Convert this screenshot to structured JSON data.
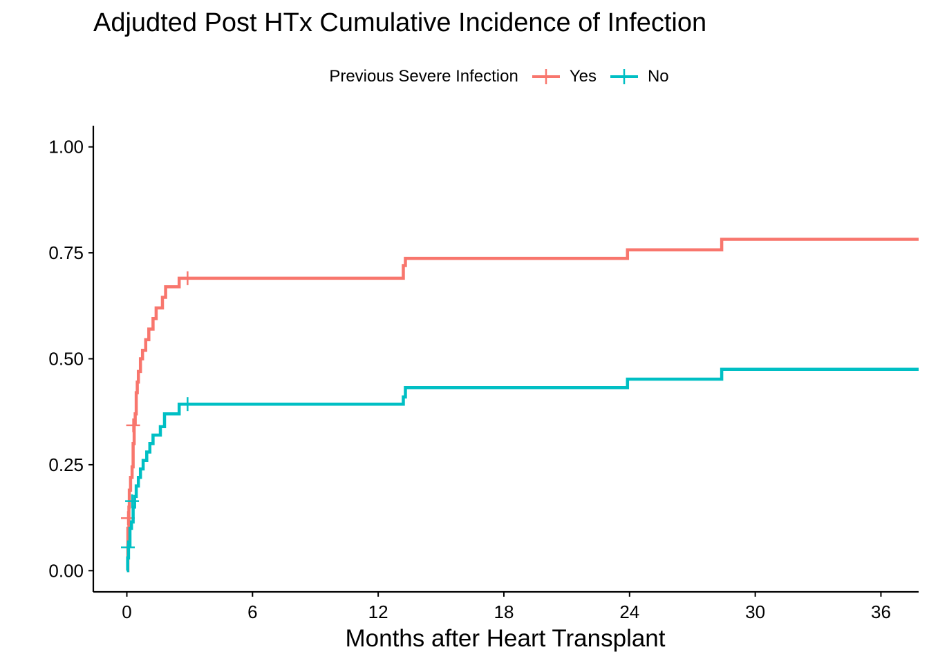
{
  "chart_data": {
    "type": "line",
    "step": true,
    "title": "Adjudted Post HTx Cumulative Incidence of Infection",
    "xlabel": "Months after Heart Transplant",
    "ylabel": "",
    "xlim": [
      -1.6,
      37.8
    ],
    "ylim": [
      -0.05,
      1.05
    ],
    "xticks": [
      0,
      6,
      12,
      18,
      24,
      30,
      36
    ],
    "yticks": [
      0.0,
      0.25,
      0.5,
      0.75,
      1.0
    ],
    "xtick_labels": [
      "0",
      "6",
      "12",
      "18",
      "24",
      "30",
      "36"
    ],
    "ytick_labels": [
      "0.00",
      "0.25",
      "0.50",
      "0.75",
      "1.00"
    ],
    "grid": false,
    "legend": {
      "title": "Previous Severe Infection",
      "position": "top"
    },
    "series": [
      {
        "name": "Yes",
        "color": "#F8766D",
        "x": [
          0,
          0.05,
          0.1,
          0.12,
          0.18,
          0.25,
          0.3,
          0.35,
          0.4,
          0.45,
          0.5,
          0.55,
          0.65,
          0.75,
          0.9,
          1.05,
          1.25,
          1.4,
          1.7,
          1.85,
          2.3,
          2.5,
          13.2,
          13.3,
          23.9,
          28.4,
          37.8
        ],
        "y": [
          0.0,
          0.1,
          0.15,
          0.19,
          0.22,
          0.245,
          0.3,
          0.345,
          0.37,
          0.42,
          0.445,
          0.47,
          0.5,
          0.52,
          0.545,
          0.57,
          0.595,
          0.62,
          0.645,
          0.67,
          0.67,
          0.69,
          0.72,
          0.737,
          0.757,
          0.782,
          0.782
        ],
        "censor": [
          [
            0.05,
            0.124
          ],
          [
            0.3,
            0.343
          ],
          [
            2.9,
            0.69
          ]
        ]
      },
      {
        "name": "No",
        "color": "#00BFC4",
        "x": [
          0,
          0.04,
          0.08,
          0.15,
          0.22,
          0.3,
          0.37,
          0.45,
          0.55,
          0.65,
          0.78,
          0.95,
          1.1,
          1.25,
          1.6,
          1.8,
          2.4,
          2.5,
          13.2,
          13.3,
          23.9,
          28.4,
          37.8
        ],
        "y": [
          0.0,
          0.03,
          0.06,
          0.1,
          0.115,
          0.15,
          0.175,
          0.2,
          0.22,
          0.24,
          0.26,
          0.28,
          0.3,
          0.32,
          0.34,
          0.37,
          0.37,
          0.393,
          0.41,
          0.432,
          0.452,
          0.475,
          0.475
        ],
        "censor": [
          [
            0.05,
            0.055
          ],
          [
            0.25,
            0.164
          ],
          [
            2.9,
            0.393
          ]
        ]
      }
    ]
  }
}
